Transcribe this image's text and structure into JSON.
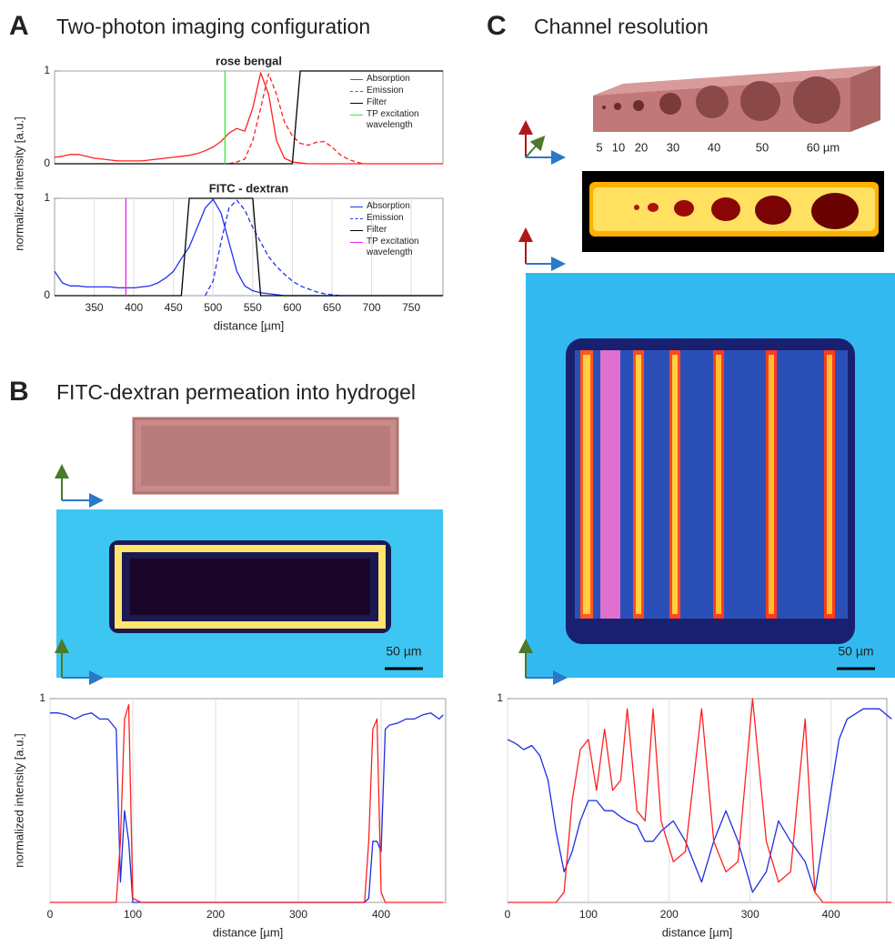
{
  "panels": {
    "A": {
      "label": "A",
      "title": "Two-photon imaging configuration"
    },
    "B": {
      "label": "B",
      "title": "FITC-dextran permeation into hydrogel",
      "scale_bar": "50 µm"
    },
    "C": {
      "label": "C",
      "title": "Channel resolution",
      "channel_sizes": [
        "5",
        "10",
        "20",
        "30",
        "40",
        "50",
        "60 µm"
      ],
      "scale_bar": "50 µm"
    }
  },
  "chart_data": [
    {
      "type": "line",
      "title": "rose bengal",
      "ylabel": "normalized intensity [a.u.]",
      "x": [
        300,
        310,
        320,
        330,
        340,
        350,
        360,
        370,
        380,
        390,
        400,
        410,
        420,
        430,
        440,
        450,
        460,
        470,
        480,
        490,
        500,
        510,
        520,
        530,
        540,
        550,
        560,
        570,
        580,
        590,
        600,
        610,
        620,
        630,
        640,
        650,
        660,
        670,
        680,
        690,
        700,
        710,
        720,
        730,
        740,
        750,
        760,
        770,
        780,
        790
      ],
      "xlim": [
        300,
        790
      ],
      "ylim": [
        0,
        1
      ],
      "yticks": [
        0,
        1
      ],
      "legend": "upper right",
      "series": [
        {
          "name": "Absorption",
          "color": "#ff2020",
          "dashed": false,
          "values": [
            0.07,
            0.08,
            0.1,
            0.1,
            0.08,
            0.06,
            0.05,
            0.04,
            0.03,
            0.03,
            0.03,
            0.03,
            0.04,
            0.05,
            0.06,
            0.07,
            0.08,
            0.09,
            0.11,
            0.14,
            0.18,
            0.24,
            0.33,
            0.38,
            0.35,
            0.6,
            0.98,
            0.75,
            0.25,
            0.06,
            0.02,
            0.01,
            0,
            0,
            0,
            0,
            0,
            0,
            0,
            0,
            0,
            0,
            0,
            0,
            0,
            0,
            0,
            0,
            0,
            0
          ]
        },
        {
          "name": "Emission",
          "color": "#ff2020",
          "dashed": true,
          "values": [
            null,
            null,
            null,
            null,
            null,
            null,
            null,
            null,
            null,
            null,
            null,
            null,
            null,
            null,
            null,
            null,
            null,
            null,
            null,
            null,
            null,
            null,
            0,
            0.02,
            0.05,
            0.25,
            0.6,
            0.97,
            0.75,
            0.45,
            0.3,
            0.22,
            0.2,
            0.23,
            0.24,
            0.18,
            0.1,
            0.05,
            0.02,
            0,
            null,
            null,
            null,
            null,
            null,
            null,
            null,
            null,
            null,
            null
          ]
        },
        {
          "name": "Filter",
          "color": "#000000",
          "dashed": false,
          "values": [
            0,
            0,
            0,
            0,
            0,
            0,
            0,
            0,
            0,
            0,
            0,
            0,
            0,
            0,
            0,
            0,
            0,
            0,
            0,
            0,
            0,
            0,
            0,
            0,
            0,
            0,
            0,
            0,
            0,
            0,
            0,
            1,
            1,
            1,
            1,
            1,
            1,
            1,
            1,
            1,
            1,
            1,
            1,
            1,
            1,
            1,
            1,
            1,
            1,
            1
          ]
        },
        {
          "name": "TP excitation wavelength",
          "color": "#33ee33",
          "dashed": false,
          "x": [
            515,
            515
          ],
          "values": [
            0,
            1
          ]
        }
      ]
    },
    {
      "type": "line",
      "title": "FITC - dextran",
      "xlabel": "distance [µm]",
      "x": [
        300,
        310,
        320,
        330,
        340,
        350,
        360,
        370,
        380,
        390,
        400,
        410,
        420,
        430,
        440,
        450,
        460,
        470,
        480,
        490,
        500,
        510,
        520,
        530,
        540,
        550,
        560,
        570,
        580,
        590,
        600,
        610,
        620,
        630,
        640,
        650,
        660,
        670,
        680,
        690,
        700,
        710,
        720,
        730,
        740,
        750,
        760,
        770,
        780,
        790
      ],
      "xlim": [
        300,
        790
      ],
      "ylim": [
        0,
        1
      ],
      "yticks": [
        0,
        1
      ],
      "xticks": [
        350,
        400,
        450,
        500,
        550,
        600,
        650,
        700,
        750
      ],
      "grid": true,
      "legend": "upper right",
      "series": [
        {
          "name": "Absorption",
          "color": "#2233ee",
          "dashed": false,
          "values": [
            0.25,
            0.13,
            0.1,
            0.1,
            0.09,
            0.09,
            0.09,
            0.09,
            0.08,
            0.08,
            0.08,
            0.09,
            0.1,
            0.13,
            0.18,
            0.25,
            0.38,
            0.5,
            0.7,
            0.9,
            0.99,
            0.85,
            0.55,
            0.25,
            0.1,
            0.05,
            0.03,
            0.02,
            0.01,
            0,
            0,
            0,
            0,
            0,
            0,
            0,
            0,
            0,
            0,
            0,
            0,
            0,
            0,
            0,
            0,
            0,
            0,
            0,
            0,
            0
          ]
        },
        {
          "name": "Emission",
          "color": "#2233ee",
          "dashed": true,
          "values": [
            null,
            null,
            null,
            null,
            null,
            null,
            null,
            null,
            null,
            null,
            null,
            null,
            null,
            null,
            null,
            null,
            null,
            null,
            null,
            0,
            0.15,
            0.55,
            0.9,
            0.98,
            0.88,
            0.7,
            0.55,
            0.4,
            0.3,
            0.22,
            0.15,
            0.1,
            0.07,
            0.04,
            0.02,
            0.01,
            0,
            null,
            null,
            null,
            null,
            null,
            null,
            null,
            null,
            null,
            null,
            null,
            null,
            null
          ]
        },
        {
          "name": "Filter",
          "color": "#000000",
          "dashed": false,
          "values": [
            0,
            0,
            0,
            0,
            0,
            0,
            0,
            0,
            0,
            0,
            0,
            0,
            0,
            0,
            0,
            0,
            0,
            1,
            1,
            1,
            1,
            1,
            1,
            1,
            1,
            1,
            0,
            0,
            0,
            0,
            0,
            0,
            0,
            0,
            0,
            0,
            0,
            0,
            0,
            0,
            0,
            0,
            0,
            0,
            0,
            0,
            0,
            0,
            0,
            0
          ]
        },
        {
          "name": "TP excitation wavelength",
          "color": "#ee22ee",
          "dashed": false,
          "x": [
            390,
            390
          ],
          "values": [
            0,
            1
          ]
        }
      ]
    },
    {
      "type": "line",
      "ylabel": "normalized intensity [a.u.]",
      "xlabel": "distance [µm]",
      "x": [
        0,
        10,
        20,
        30,
        40,
        50,
        60,
        70,
        80,
        85,
        90,
        95,
        100,
        110,
        150,
        200,
        250,
        300,
        350,
        380,
        385,
        390,
        395,
        400,
        405,
        410,
        420,
        430,
        440,
        450,
        460,
        470,
        475
      ],
      "xlim": [
        0,
        478
      ],
      "ylim": [
        0,
        1
      ],
      "yticks": [
        1
      ],
      "xticks": [
        0,
        100,
        200,
        300,
        400
      ],
      "grid": true,
      "series": [
        {
          "color": "#1f2ee0",
          "values": [
            0.93,
            0.93,
            0.92,
            0.9,
            0.92,
            0.93,
            0.9,
            0.9,
            0.85,
            0.1,
            0.45,
            0.3,
            0,
            0,
            0,
            0,
            0,
            0,
            0,
            0,
            0.02,
            0.3,
            0.3,
            0.25,
            0.85,
            0.87,
            0.88,
            0.9,
            0.9,
            0.92,
            0.93,
            0.9,
            0.92
          ]
        },
        {
          "color": "#ff2020",
          "values": [
            0,
            0,
            0,
            0,
            0,
            0,
            0,
            0,
            0,
            0.3,
            0.9,
            0.97,
            0.02,
            0,
            0,
            0,
            0,
            0,
            0,
            0,
            0.3,
            0.85,
            0.9,
            0.05,
            0,
            0,
            0,
            0,
            0,
            0,
            0,
            0,
            0
          ]
        }
      ]
    },
    {
      "type": "line",
      "xlabel": "distance [µm]",
      "x": [
        0,
        10,
        20,
        30,
        40,
        50,
        60,
        70,
        80,
        90,
        100,
        110,
        120,
        130,
        140,
        148,
        160,
        170,
        180,
        190,
        205,
        220,
        240,
        255,
        270,
        285,
        303,
        320,
        335,
        350,
        368,
        380,
        390,
        400,
        410,
        420,
        440,
        460,
        475
      ],
      "xlim": [
        0,
        469
      ],
      "ylim": [
        0,
        1
      ],
      "yticks": [
        1
      ],
      "xticks": [
        0,
        100,
        200,
        300,
        400
      ],
      "grid": true,
      "series": [
        {
          "color": "#1f2ee0",
          "values": [
            0.8,
            0.78,
            0.75,
            0.77,
            0.72,
            0.6,
            0.35,
            0.15,
            0.25,
            0.4,
            0.5,
            0.5,
            0.45,
            0.45,
            0.42,
            0.4,
            0.38,
            0.3,
            0.3,
            0.35,
            0.4,
            0.3,
            0.1,
            0.3,
            0.45,
            0.3,
            0.05,
            0.15,
            0.4,
            0.3,
            0.2,
            0.05,
            0.3,
            0.55,
            0.8,
            0.9,
            0.95,
            0.95,
            0.9
          ]
        },
        {
          "color": "#ff2020",
          "values": [
            0,
            0,
            0,
            0,
            0,
            0,
            0,
            0.05,
            0.5,
            0.75,
            0.8,
            0.55,
            0.85,
            0.55,
            0.6,
            0.95,
            0.45,
            0.4,
            0.95,
            0.4,
            0.2,
            0.25,
            0.95,
            0.3,
            0.15,
            0.2,
            1,
            0.3,
            0.1,
            0.15,
            0.9,
            0.05,
            0,
            0,
            0,
            0,
            0,
            0,
            0
          ]
        }
      ]
    }
  ]
}
